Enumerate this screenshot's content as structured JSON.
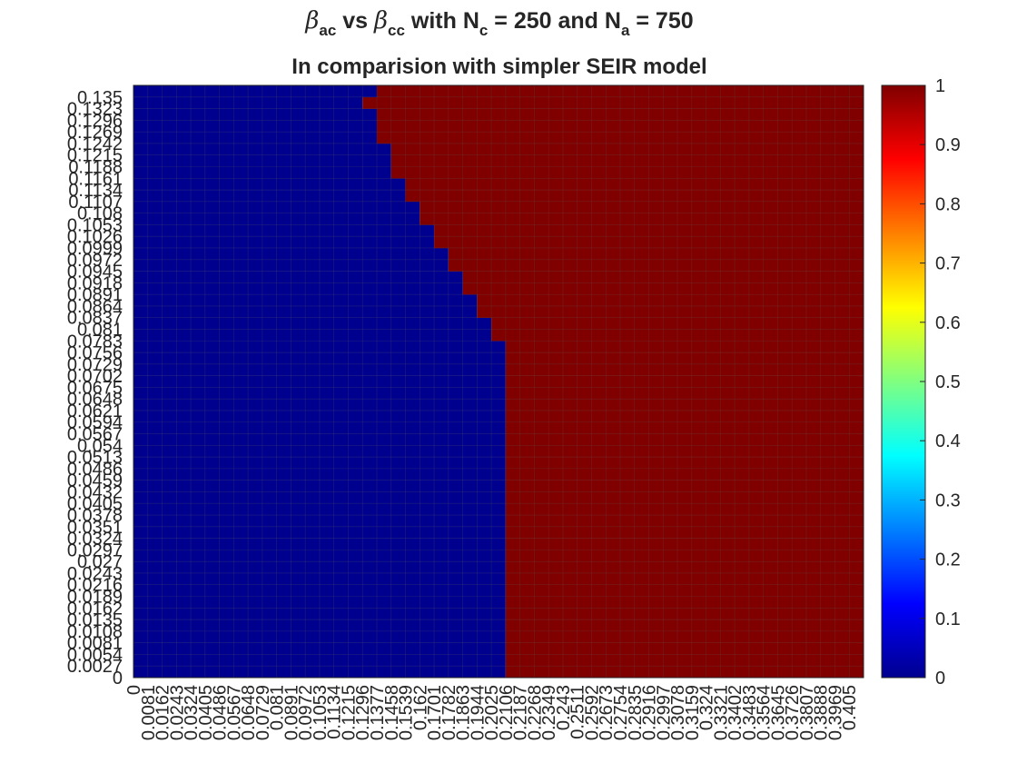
{
  "title": {
    "beta_symbol": "β",
    "sub_ac": "ac",
    "vs": " vs ",
    "sub_cc": "cc",
    "with_nc": " with N",
    "sub_c": "c",
    "eq_250": " = 250 and N",
    "sub_a": "a",
    "eq_750": " = 750",
    "line2": "In comparision with simpler SEIR model"
  },
  "chart_data": {
    "type": "heatmap",
    "xlim": [
      0,
      0.405
    ],
    "ylim": [
      0,
      0.135
    ],
    "x_step": 0.0081,
    "y_step": 0.0027,
    "x_tick_labels": [
      "0",
      "0.0081",
      "0.0162",
      "0.0243",
      "0.0324",
      "0.0405",
      "0.0486",
      "0.0567",
      "0.0648",
      "0.0729",
      "0.081",
      "0.0891",
      "0.0972",
      "0.1053",
      "0.1134",
      "0.1215",
      "0.1296",
      "0.1377",
      "0.1458",
      "0.1539",
      "0.162",
      "0.1701",
      "0.1782",
      "0.1863",
      "0.1944",
      "0.2025",
      "0.2106",
      "0.2187",
      "0.2268",
      "0.2349",
      "0.243",
      "0.2511",
      "0.2592",
      "0.2673",
      "0.2754",
      "0.2835",
      "0.2916",
      "0.2997",
      "0.3078",
      "0.3159",
      "0.324",
      "0.3321",
      "0.3402",
      "0.3483",
      "0.3564",
      "0.3645",
      "0.3726",
      "0.3807",
      "0.3888",
      "0.3969",
      "0.405"
    ],
    "y_tick_labels": [
      "0",
      "0.0027",
      "0.0054",
      "0.0081",
      "0.0108",
      "0.0135",
      "0.0162",
      "0.0189",
      "0.0216",
      "0.0243",
      "0.027",
      "0.0297",
      "0.0324",
      "0.0351",
      "0.0378",
      "0.0405",
      "0.0432",
      "0.0459",
      "0.0486",
      "0.0513",
      "0.054",
      "0.0567",
      "0.0594",
      "0.0621",
      "0.0648",
      "0.0675",
      "0.0702",
      "0.0729",
      "0.0756",
      "0.0783",
      "0.081",
      "0.0837",
      "0.0864",
      "0.0891",
      "0.0918",
      "0.0945",
      "0.0972",
      "0.0999",
      "0.1026",
      "0.1053",
      "0.108",
      "0.1107",
      "0.1134",
      "0.1161",
      "0.1188",
      "0.1215",
      "0.1242",
      "0.1269",
      "0.1296",
      "0.1323",
      "0.135"
    ],
    "boundary_description": "value 0 for x_index < boundary[y_index], else 1",
    "boundary": [
      26,
      26,
      26,
      26,
      26,
      26,
      26,
      26,
      26,
      26,
      26,
      26,
      26,
      26,
      26,
      26,
      26,
      26,
      26,
      26,
      26,
      26,
      26,
      26,
      26,
      26,
      26,
      26,
      26,
      25,
      25,
      24,
      24,
      23,
      23,
      22,
      22,
      21,
      21,
      20,
      20,
      19,
      19,
      18,
      18,
      18,
      17,
      17,
      17,
      16,
      17
    ],
    "value_low": 0,
    "value_high": 1,
    "color_low": "#00008f",
    "color_high": "#800000",
    "colorbar": {
      "colormap": "jet",
      "range": [
        0,
        1
      ],
      "tick_labels": [
        "0",
        "0.1",
        "0.2",
        "0.3",
        "0.4",
        "0.5",
        "0.6",
        "0.7",
        "0.8",
        "0.9",
        "1"
      ],
      "colors": [
        "#00008f",
        "#0000ff",
        "#0080ff",
        "#00ffff",
        "#80ff80",
        "#ffff00",
        "#ff8000",
        "#ff0000",
        "#800000"
      ]
    }
  }
}
